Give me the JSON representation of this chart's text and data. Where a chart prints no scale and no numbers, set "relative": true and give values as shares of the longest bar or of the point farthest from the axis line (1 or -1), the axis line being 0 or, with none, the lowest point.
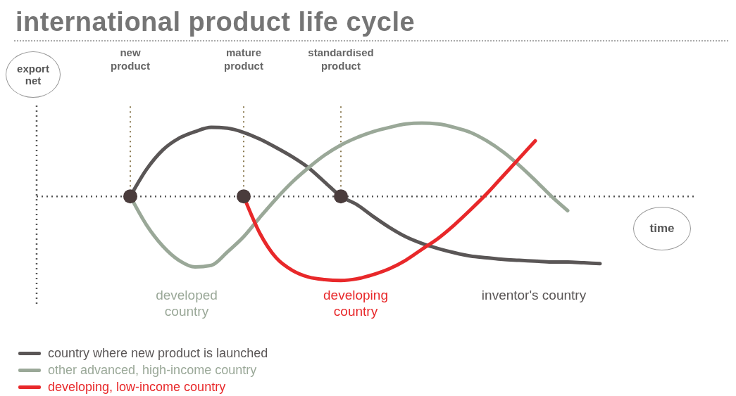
{
  "chart_data": {
    "type": "line",
    "title": "international product life cycle",
    "xlabel": "time",
    "ylabel": "export net",
    "relative": true,
    "legend": "bottom",
    "categories": [
      null,
      null,
      null,
      null,
      null,
      "new product",
      null,
      null,
      null,
      null,
      null,
      null,
      "mature product",
      null,
      null,
      null,
      null,
      null,
      "standardised product",
      null,
      null,
      null,
      null,
      null,
      null,
      null,
      null,
      null,
      null,
      null,
      null,
      null,
      null,
      null,
      null,
      null,
      null,
      null,
      null,
      null,
      null
    ],
    "series": [
      {
        "name": "country where new product is launched",
        "color": "#5a5656",
        "values": [
          null,
          null,
          null,
          null,
          null,
          0,
          0.32,
          0.55,
          0.69,
          0.77,
          0.82,
          0.81,
          0.76,
          0.68,
          0.58,
          0.47,
          0.34,
          0.17,
          0,
          -0.1,
          -0.24,
          -0.37,
          -0.48,
          -0.56,
          -0.62,
          -0.67,
          -0.71,
          -0.73,
          -0.75,
          -0.76,
          -0.77,
          -0.78,
          -0.78,
          -0.79,
          -0.8,
          null,
          null,
          null,
          null,
          null,
          null
        ]
      },
      {
        "name": "other advanced, high-income country",
        "color": "#9aa898",
        "values": [
          null,
          null,
          null,
          null,
          null,
          0,
          -0.34,
          -0.59,
          -0.76,
          -0.84,
          -0.82,
          -0.66,
          -0.48,
          -0.25,
          -0.03,
          0.17,
          0.34,
          0.49,
          0.61,
          0.7,
          0.77,
          0.82,
          0.86,
          0.87,
          0.86,
          0.82,
          0.76,
          0.66,
          0.53,
          0.37,
          0.19,
          0,
          -0.17,
          null,
          null,
          null,
          null,
          null,
          null,
          null,
          null
        ]
      },
      {
        "name": "developing, low-income country",
        "color": "#e8282a",
        "values": [
          null,
          null,
          null,
          null,
          null,
          null,
          null,
          null,
          null,
          null,
          null,
          null,
          0,
          -0.44,
          -0.73,
          -0.88,
          -0.96,
          -0.99,
          -1,
          -0.98,
          -0.93,
          -0.86,
          -0.76,
          -0.63,
          -0.5,
          -0.34,
          -0.16,
          0.03,
          0.24,
          0.45,
          0.66,
          null,
          null,
          null,
          null,
          null,
          null,
          null,
          null,
          null,
          null
        ]
      },
      {
        "type": "scatter",
        "color": "#4a3c3c",
        "x": [
          "new product",
          "mature product",
          "standardised product"
        ],
        "values": [
          0,
          0,
          0
        ]
      }
    ],
    "ref_lines": [
      {
        "axis": "y",
        "value": 0,
        "color": "#555555",
        "line_style": "dotted"
      },
      {
        "axis": "x",
        "value": "new product",
        "color": "#8a7a50",
        "line_style": "dotted"
      },
      {
        "axis": "x",
        "value": "mature product",
        "color": "#8a7a50",
        "line_style": "dotted"
      },
      {
        "axis": "x",
        "value": "standardised product",
        "color": "#8a7a50",
        "line_style": "dotted"
      }
    ],
    "annotations": [
      "developed country",
      "developing country",
      "inventor's country"
    ]
  }
}
